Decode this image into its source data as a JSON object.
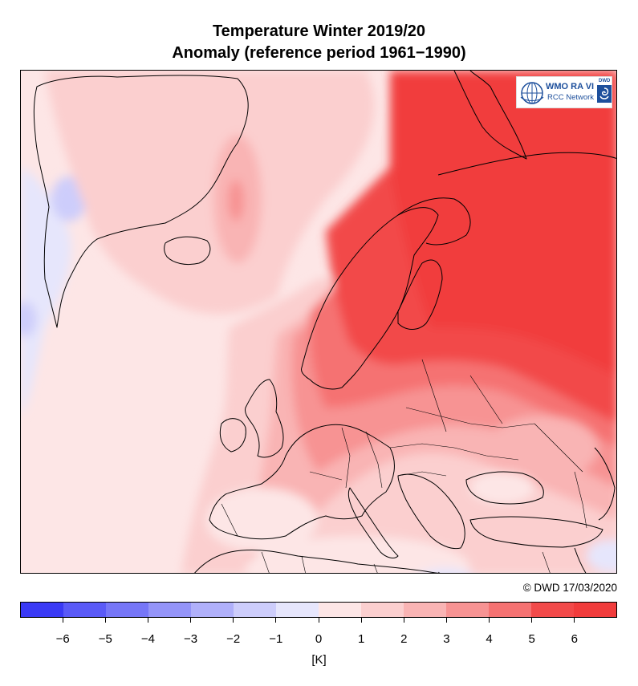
{
  "header": {
    "title_line1": "Temperature Winter 2019/20",
    "title_line2": "Anomaly (reference period 1961−1990)"
  },
  "logo": {
    "text_main": "WMO RA VI",
    "text_sub": "RCC Network",
    "dwd_mark": "DWD",
    "icon": "wmo-globe-icon"
  },
  "footer": {
    "copyright": "© DWD 17/03/2020"
  },
  "legend": {
    "unit": "[K]",
    "tick_labels": [
      "−6",
      "−5",
      "−4",
      "−3",
      "−2",
      "−1",
      "0",
      "1",
      "2",
      "3",
      "4",
      "5",
      "6"
    ],
    "bin_colors": [
      "#3a3af5",
      "#5a5af7",
      "#7676f7",
      "#9494f8",
      "#b0b0fa",
      "#cdcdfb",
      "#e6e6fc",
      "#fde6e6",
      "#fbcfcf",
      "#f9b4b4",
      "#f79393",
      "#f57272",
      "#f24a4a",
      "#f13c3c"
    ]
  },
  "map_colors": {
    "ocean_base": "#fde6e6",
    "light_blue": "#e6e6fc",
    "mid_blue": "#cdcdfb",
    "pink1": "#fbcfcf",
    "pink2": "#f9b4b4",
    "red1": "#f79393",
    "red2": "#f57272",
    "red3": "#f24a4a"
  }
}
